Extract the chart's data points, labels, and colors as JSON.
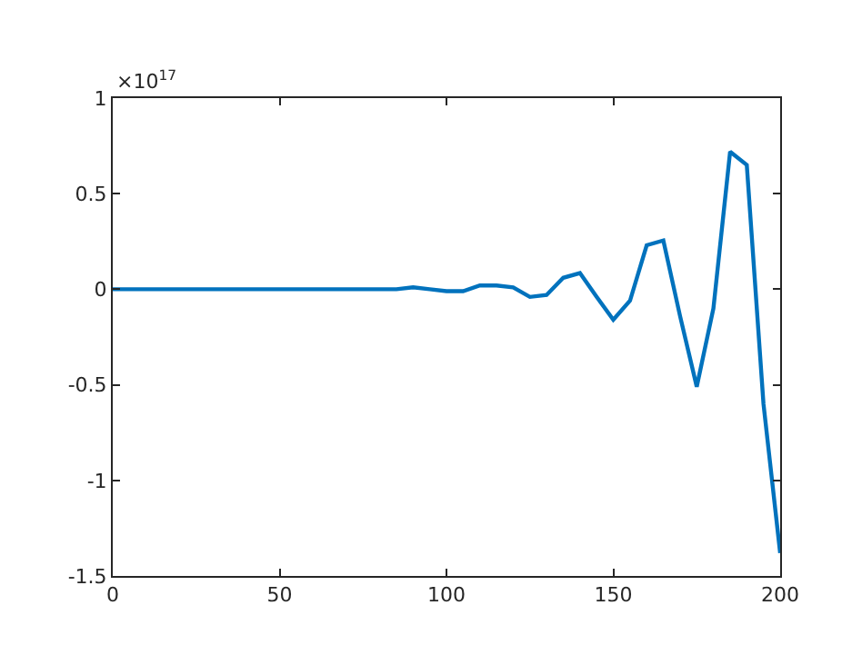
{
  "chart_data": {
    "type": "line",
    "x": [
      0,
      5,
      10,
      15,
      20,
      25,
      30,
      35,
      40,
      45,
      50,
      55,
      60,
      65,
      70,
      75,
      80,
      85,
      90,
      95,
      100,
      105,
      110,
      115,
      120,
      125,
      130,
      135,
      140,
      145,
      150,
      155,
      160,
      165,
      170,
      175,
      180,
      185,
      190,
      195,
      200
    ],
    "series": [
      {
        "color": "#0072bd",
        "values": [
          0,
          0,
          0,
          0,
          0,
          0,
          0,
          0,
          0,
          0,
          0,
          0,
          0,
          0,
          0,
          0,
          0,
          0,
          0.01,
          0,
          -0.01,
          -0.01,
          0.02,
          0.02,
          0.01,
          -0.04,
          -0.03,
          0.06,
          0.085,
          -0.04,
          -0.16,
          -0.06,
          0.23,
          0.255,
          -0.14,
          -0.51,
          -0.1,
          0.72,
          0.65,
          -0.6,
          -1.38
        ]
      }
    ],
    "xlim": [
      0,
      200
    ],
    "xticks": [
      0,
      50,
      100,
      150,
      200
    ],
    "ylim": [
      -1.5,
      1
    ],
    "yticks": [
      -1.5,
      -1,
      -0.5,
      0,
      0.5,
      1
    ],
    "annotations": [
      "×10$^{17}$"
    ],
    "marker": "none",
    "line_style": "solid"
  }
}
